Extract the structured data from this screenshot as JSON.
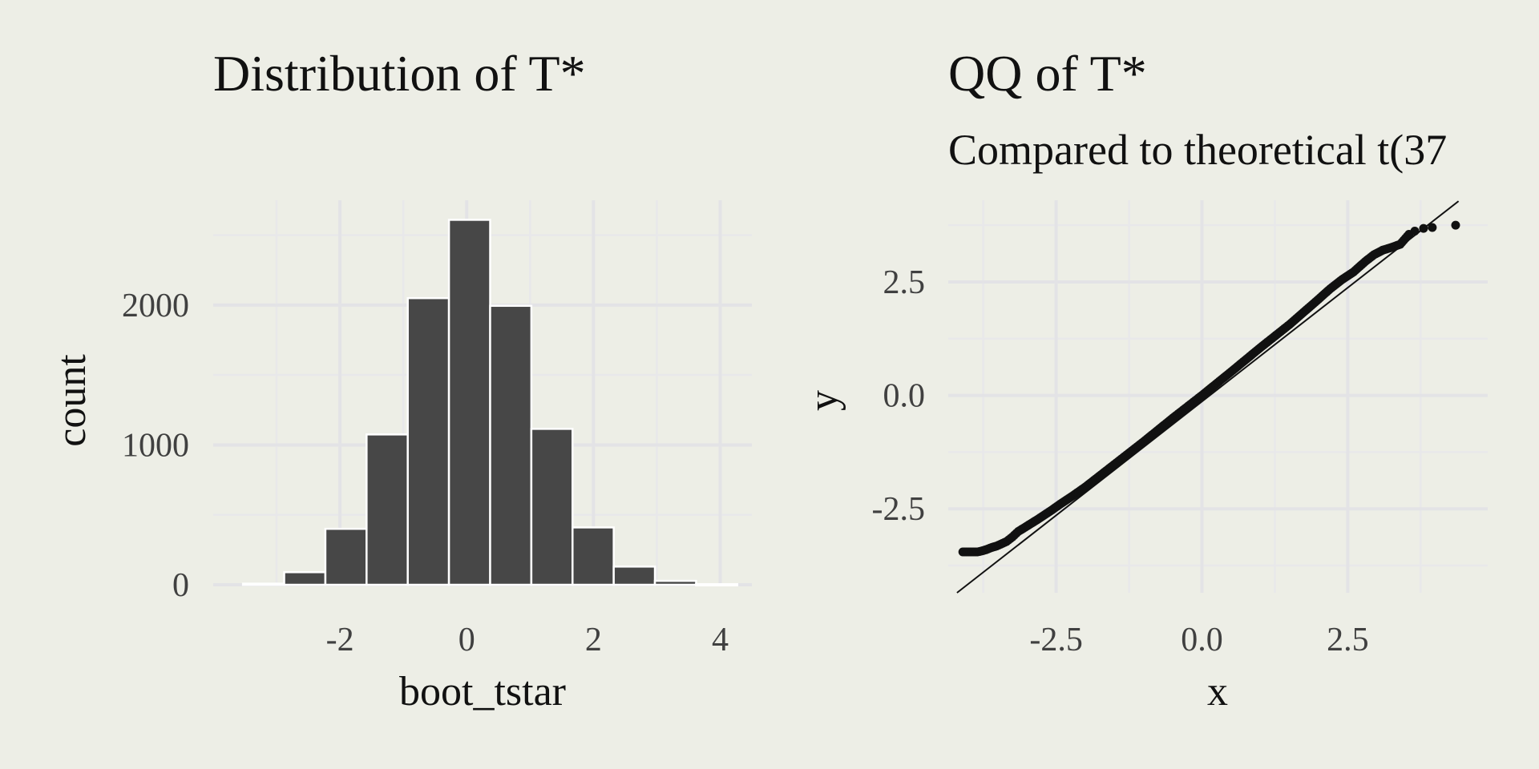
{
  "chart_data": [
    {
      "type": "bar",
      "title": "Distribution of T*",
      "xlabel": "boot_tstar",
      "ylabel": "count",
      "xlim": [
        -4.0,
        4.5
      ],
      "ylim": [
        0,
        2750
      ],
      "x_ticks": [
        -2,
        0,
        2,
        4
      ],
      "y_ticks": [
        0,
        1000,
        2000
      ],
      "bin_width": 0.65,
      "bins": [
        {
          "x0": -3.53,
          "x1": -2.88,
          "count": 8
        },
        {
          "x0": -2.88,
          "x1": -2.23,
          "count": 90
        },
        {
          "x0": -2.23,
          "x1": -1.58,
          "count": 400
        },
        {
          "x0": -1.58,
          "x1": -0.93,
          "count": 1075
        },
        {
          "x0": -0.93,
          "x1": -0.28,
          "count": 2050
        },
        {
          "x0": -0.28,
          "x1": 0.37,
          "count": 2610
        },
        {
          "x0": 0.37,
          "x1": 1.02,
          "count": 1995
        },
        {
          "x0": 1.02,
          "x1": 1.67,
          "count": 1115
        },
        {
          "x0": 1.67,
          "x1": 2.32,
          "count": 410
        },
        {
          "x0": 2.32,
          "x1": 2.97,
          "count": 130
        },
        {
          "x0": 2.97,
          "x1": 3.62,
          "count": 28
        },
        {
          "x0": 3.62,
          "x1": 4.27,
          "count": 4
        }
      ],
      "bar_color": "#474747",
      "bar_outline": "#ffffff"
    },
    {
      "type": "scatter",
      "title": "QQ of T*",
      "subtitle": "Compared to theoretical t(37",
      "xlabel": "x",
      "ylabel": "y",
      "xlim": [
        -4.35,
        4.9
      ],
      "ylim": [
        -4.35,
        4.3
      ],
      "x_ticks": [
        -2.5,
        0.0,
        2.5
      ],
      "y_ticks": [
        -2.5,
        0.0,
        2.5
      ],
      "reference_line": {
        "x": [
          -4.2,
          4.4
        ],
        "y": [
          -4.35,
          4.28
        ]
      },
      "points": {
        "x": [
          -4.1,
          -3.85,
          -3.78,
          -3.7,
          -3.6,
          -3.52,
          -3.45,
          -3.35,
          -3.25,
          -3.15,
          -3.0,
          -2.8,
          -2.6,
          -2.4,
          -2.2,
          -2.0,
          -1.5,
          -1.0,
          -0.5,
          0.0,
          0.5,
          1.0,
          1.5,
          2.0,
          2.2,
          2.4,
          2.6,
          2.8,
          2.95,
          3.1,
          3.25,
          3.4,
          3.55,
          3.65,
          3.8,
          3.95,
          4.35
        ],
        "y": [
          -3.45,
          -3.45,
          -3.43,
          -3.4,
          -3.35,
          -3.32,
          -3.28,
          -3.22,
          -3.12,
          -3.0,
          -2.88,
          -2.72,
          -2.55,
          -2.37,
          -2.2,
          -2.02,
          -1.52,
          -1.02,
          -0.5,
          0.0,
          0.52,
          1.05,
          1.56,
          2.12,
          2.35,
          2.55,
          2.72,
          2.95,
          3.1,
          3.2,
          3.26,
          3.33,
          3.55,
          3.62,
          3.68,
          3.7,
          3.75
        ]
      },
      "point_color": "#111111",
      "line_color": "#111111"
    }
  ]
}
